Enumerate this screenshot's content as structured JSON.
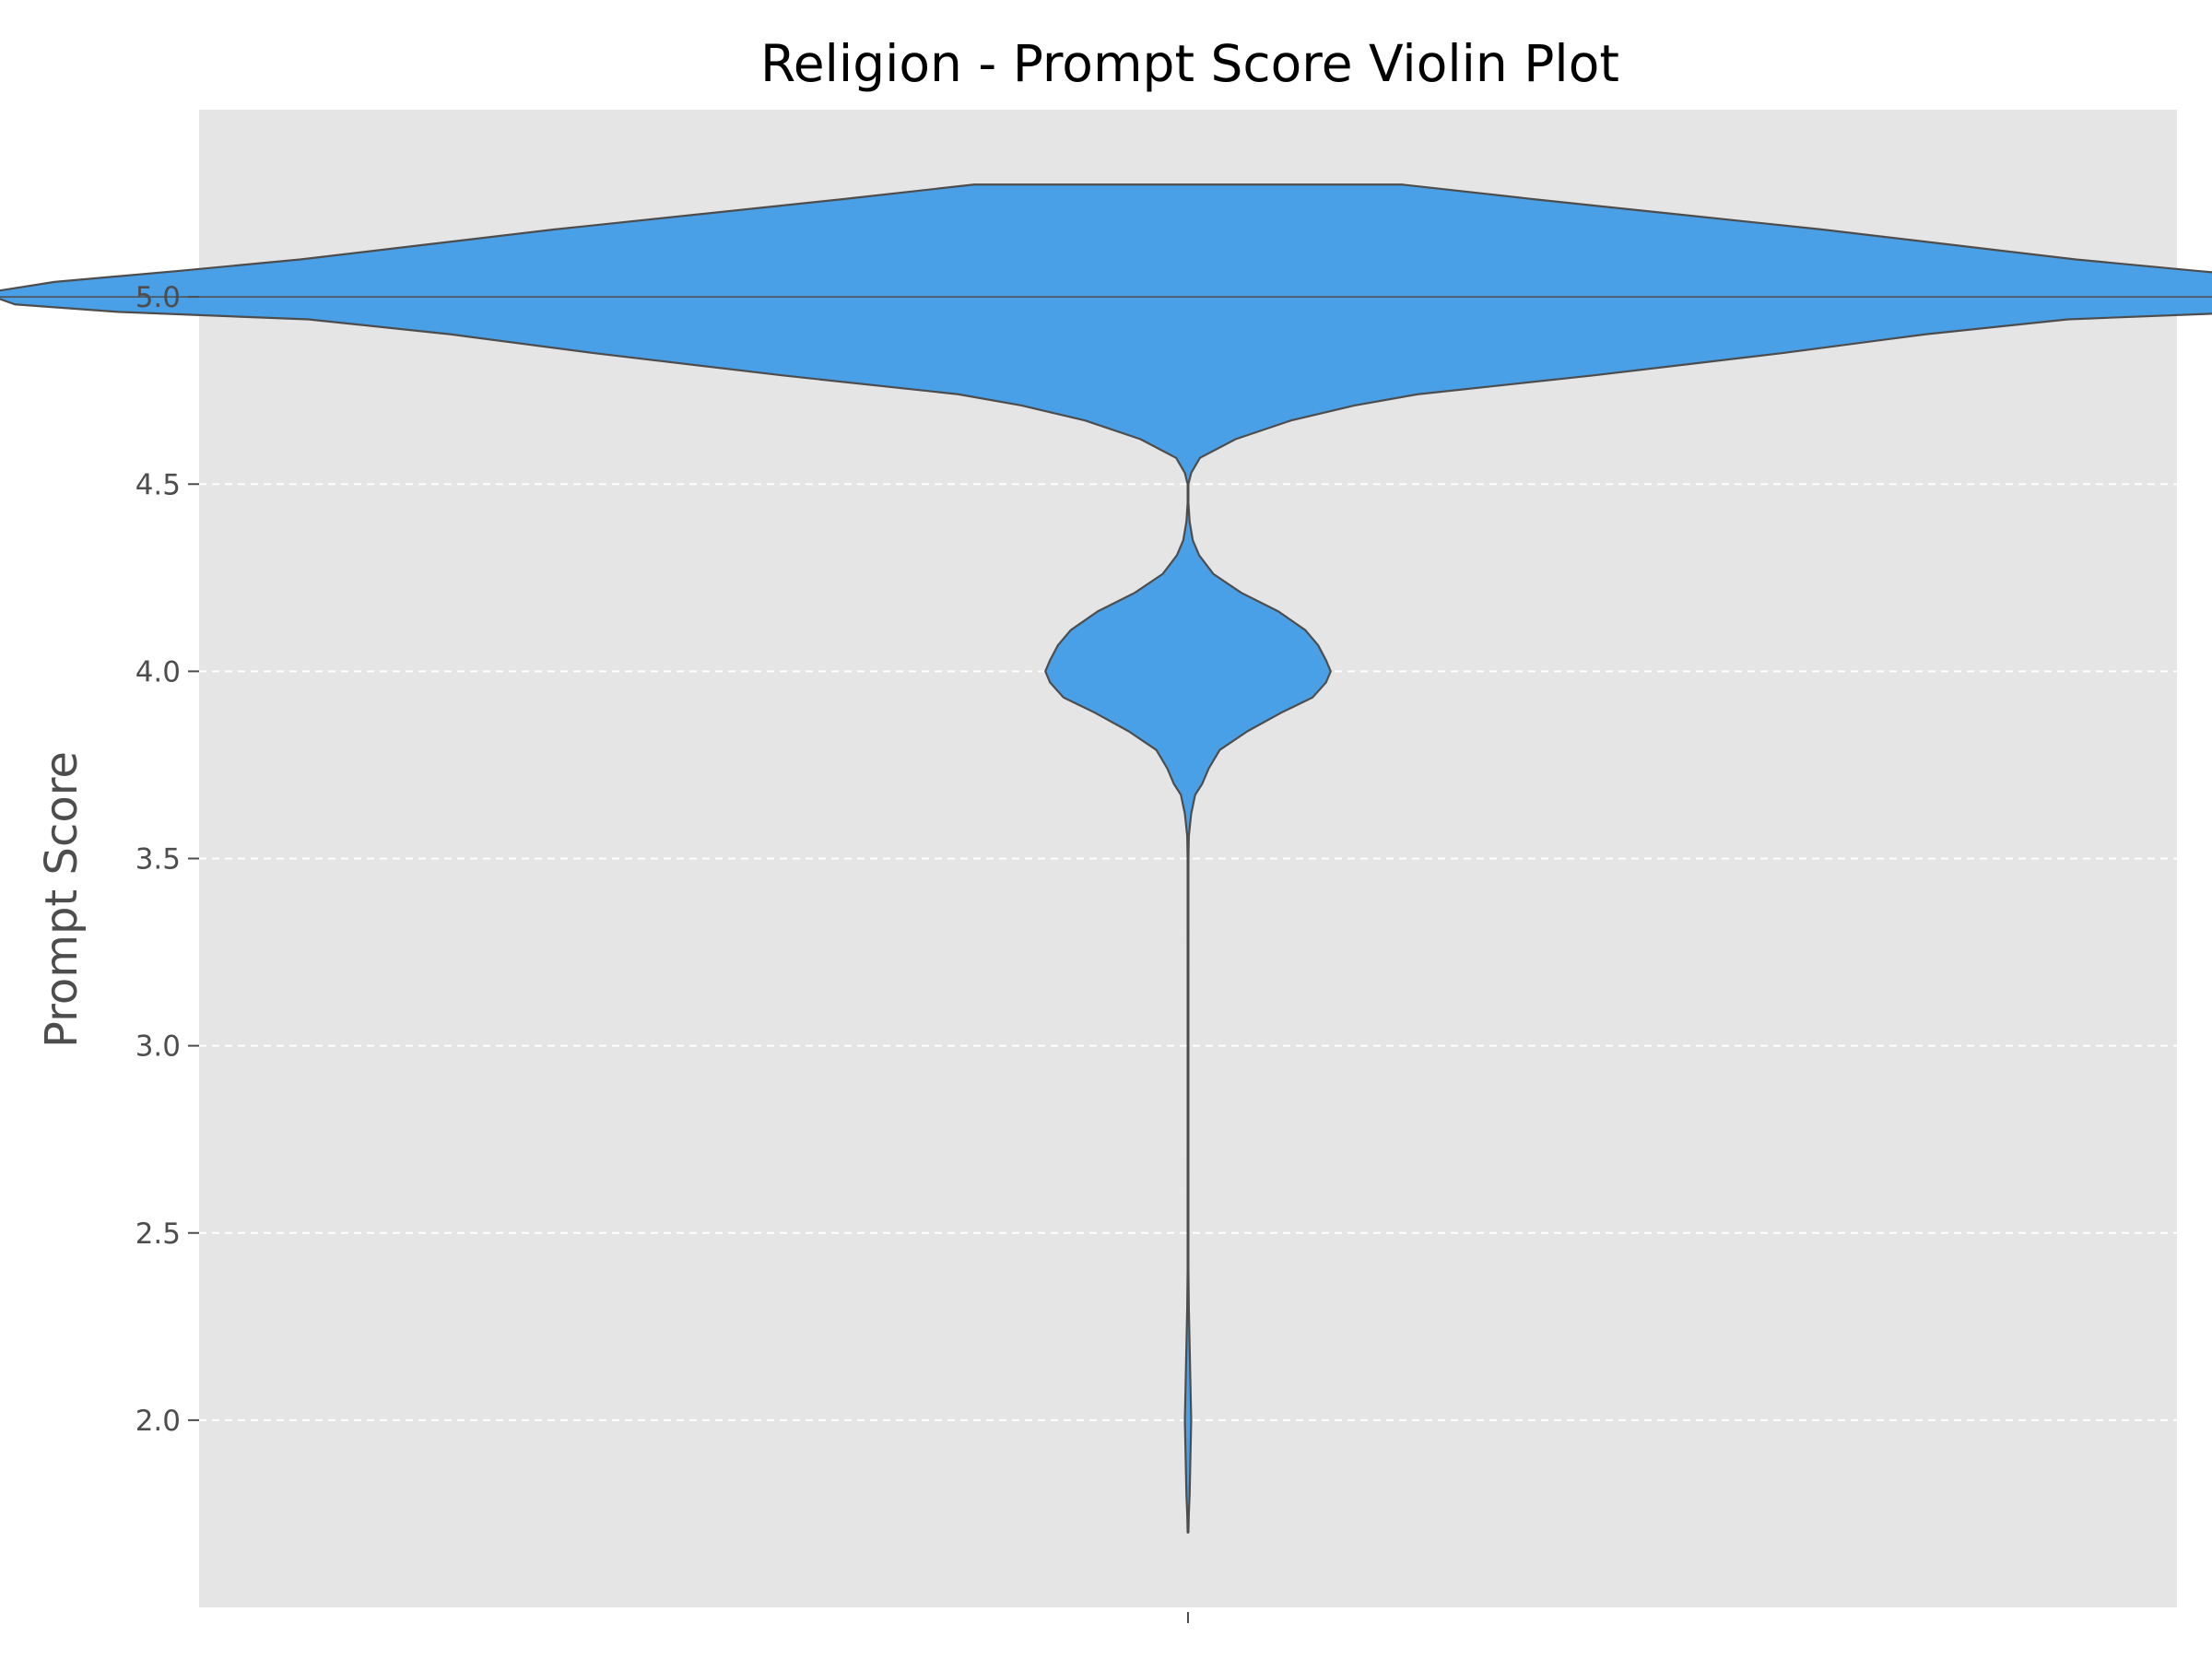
{
  "chart_data": {
    "type": "violin",
    "title": "Religion - Prompt Score Violin Plot",
    "xlabel": "",
    "ylabel": "Prompt Score",
    "ylim": [
      1.5,
      5.5
    ],
    "yticks": [
      2.0,
      2.5,
      3.0,
      3.5,
      4.0,
      4.5,
      5.0
    ],
    "ytick_labels": [
      "2.0",
      "2.5",
      "3.0",
      "3.5",
      "4.0",
      "4.5",
      "5.0"
    ],
    "grid": "y-dashed",
    "colors": {
      "background": "#e5e5e5",
      "violin_fill": "#4aa0e6",
      "violin_edge": "#4d4d4d",
      "grid": "#ffffff"
    },
    "series": [
      {
        "median": 5.0,
        "min": 1.7,
        "max": 5.3,
        "density_profile": [
          [
            5.3,
            0.27
          ],
          [
            5.26,
            0.44
          ],
          [
            5.22,
            0.62
          ],
          [
            5.18,
            0.8
          ],
          [
            5.14,
            0.96
          ],
          [
            5.1,
            1.12
          ],
          [
            5.07,
            1.27
          ],
          [
            5.04,
            1.43
          ],
          [
            5.01,
            1.52
          ],
          [
            4.98,
            1.48
          ],
          [
            4.96,
            1.35
          ],
          [
            4.94,
            1.11
          ],
          [
            4.9,
            0.93
          ],
          [
            4.85,
            0.75
          ],
          [
            4.79,
            0.51
          ],
          [
            4.74,
            0.29
          ],
          [
            4.71,
            0.21
          ],
          [
            4.67,
            0.13
          ],
          [
            4.62,
            0.06
          ],
          [
            4.57,
            0.015
          ],
          [
            4.53,
            0.004
          ],
          [
            4.5,
            0.0
          ],
          [
            4.45,
            0.0
          ],
          [
            4.4,
            0.002
          ],
          [
            4.35,
            0.006
          ],
          [
            4.31,
            0.014
          ],
          [
            4.26,
            0.032
          ],
          [
            4.21,
            0.067
          ],
          [
            4.16,
            0.114
          ],
          [
            4.11,
            0.148
          ],
          [
            4.07,
            0.164
          ],
          [
            4.03,
            0.174
          ],
          [
            4.0,
            0.18
          ],
          [
            3.97,
            0.174
          ],
          [
            3.93,
            0.157
          ],
          [
            3.89,
            0.118
          ],
          [
            3.84,
            0.075
          ],
          [
            3.79,
            0.04
          ],
          [
            3.74,
            0.026
          ],
          [
            3.7,
            0.018
          ],
          [
            3.67,
            0.009
          ],
          [
            3.62,
            0.004
          ],
          [
            3.56,
            0.001
          ],
          [
            3.5,
            0.0005
          ],
          [
            3.2,
            0.0003
          ],
          [
            2.8,
            0.0003
          ],
          [
            2.4,
            0.0005
          ],
          [
            2.3,
            0.001
          ],
          [
            2.2,
            0.002
          ],
          [
            2.1,
            0.003
          ],
          [
            2.0,
            0.004
          ],
          [
            1.9,
            0.003
          ],
          [
            1.8,
            0.002
          ],
          [
            1.75,
            0.001
          ],
          [
            1.7,
            0.0004
          ]
        ]
      }
    ]
  }
}
